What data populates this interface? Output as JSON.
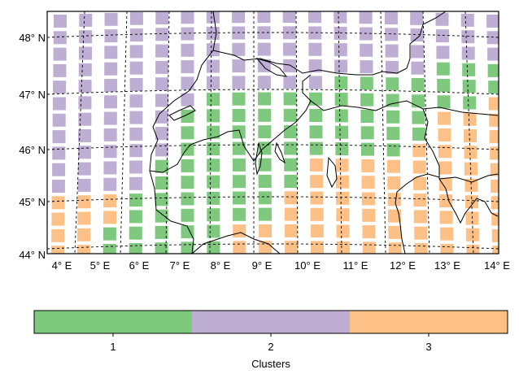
{
  "map": {
    "lat_labels": [
      "44° N",
      "45° N",
      "46° N",
      "47° N",
      "48° N"
    ],
    "lon_labels": [
      "4° E",
      "5° E",
      "6° E",
      "7° E",
      "8° E",
      "9° E",
      "10° E",
      "11° E",
      "12° E",
      "13° E",
      "14° E"
    ],
    "cluster_colors": {
      "1": "#7fc97f",
      "2": "#beaed4",
      "3": "#fdc086"
    },
    "grid": {
      "rows": 15,
      "cols": 18,
      "top_latitude": 48.4,
      "bottom_latitude": 44.1,
      "note_rows": "row 0 = northernmost",
      "cluster_rows": [
        "222222222222222222",
        "222222222222222222",
        "222222222222222222",
        "222222222222222111",
        "222222222221111111",
        "222222111111111113",
        "222221111111111333",
        "222221111111111333",
        "222221111111113333",
        "222211111133333333",
        "222211111133333333",
        "333111111333333333",
        "333111111333333333",
        "331111133333333333",
        "331111133333333333"
      ]
    }
  },
  "colorbar": {
    "ticks": [
      "1",
      "2",
      "3"
    ],
    "title": "Clusters"
  }
}
